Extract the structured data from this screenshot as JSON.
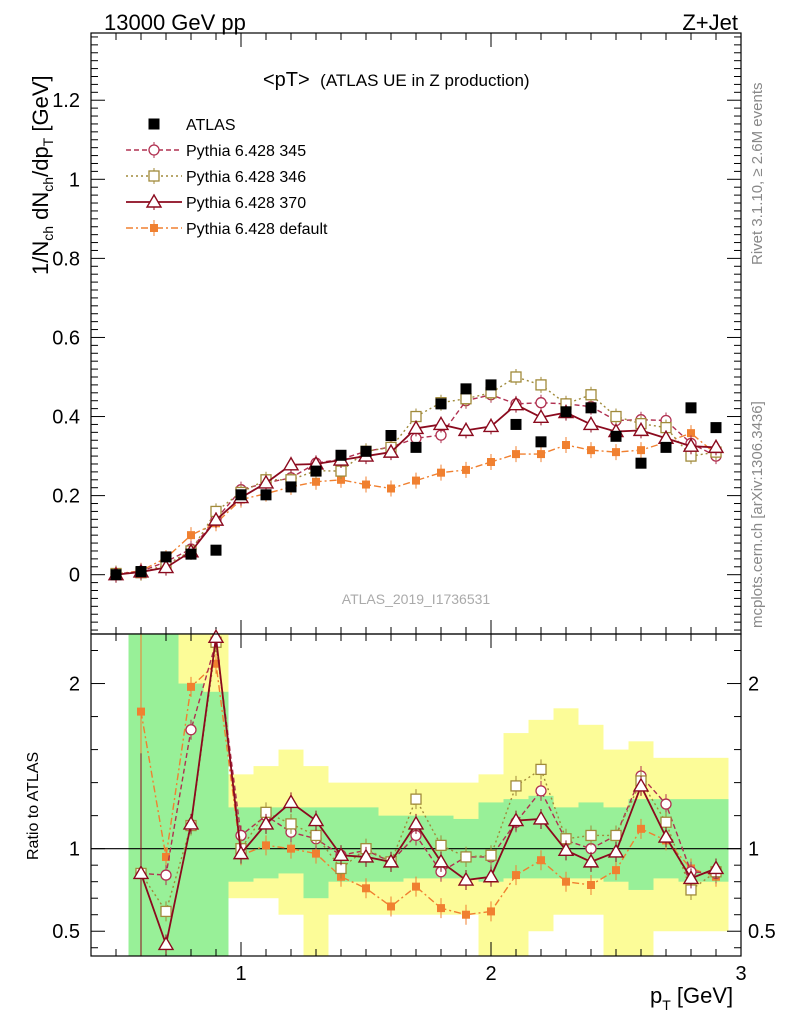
{
  "header": {
    "energy": "13000 GeV pp",
    "process": "Z+Jet"
  },
  "plot_title": {
    "main": "<pT>",
    "sub": "(ATLAS UE in Z production)"
  },
  "watermark": "ATLAS_2019_I1736531",
  "side_labels": {
    "rivet": "Rivet 3.1.10, ≥ 2.6M events",
    "source": "mcplots.cern.ch [arXiv:1306.3436]"
  },
  "axes": {
    "ylabel_main": "1/N_ch dN_ch/dp_T [GeV]",
    "ylabel_ratio": "Ratio to ATLAS",
    "xlabel": "p_T [GeV]"
  },
  "chart_data": [
    {
      "type": "scatter",
      "panel": "main",
      "xlim": [
        0.4,
        3.0
      ],
      "ylim": [
        -0.15,
        1.37
      ],
      "x_ticks": [
        1,
        2,
        3
      ],
      "y_ticks": [
        0,
        0.2,
        0.4,
        0.6,
        0.8,
        1,
        1.2
      ],
      "legend": "top-left",
      "x": [
        0.5,
        0.6,
        0.7,
        0.8,
        0.9,
        1.0,
        1.1,
        1.2,
        1.3,
        1.4,
        1.5,
        1.6,
        1.7,
        1.8,
        1.9,
        2.0,
        2.1,
        2.2,
        2.3,
        2.4,
        2.5,
        2.6,
        2.7,
        2.8,
        2.9
      ],
      "series": [
        {
          "name": "ATLAS",
          "style": "data",
          "color": "#000000",
          "values": [
            0.0,
            0.008,
            0.045,
            0.052,
            0.062,
            0.202,
            0.202,
            0.222,
            0.262,
            0.302,
            0.312,
            0.352,
            0.322,
            0.432,
            0.47,
            0.48,
            0.38,
            0.336,
            0.412,
            0.422,
            0.35,
            0.282,
            0.322,
            0.422,
            0.372
          ]
        },
        {
          "name": "Pythia 6.428 345",
          "style": "circle",
          "color": "#b03050",
          "values": [
            0.002,
            0.008,
            0.033,
            0.065,
            0.14,
            0.215,
            0.232,
            0.245,
            0.282,
            0.292,
            0.312,
            0.323,
            0.345,
            0.353,
            0.44,
            0.455,
            0.432,
            0.435,
            0.432,
            0.425,
            0.39,
            0.392,
            0.39,
            0.332,
            0.3
          ]
        },
        {
          "name": "Pythia 6.428 346",
          "style": "square",
          "color": "#a08a3a",
          "values": [
            0.003,
            0.005,
            0.025,
            0.06,
            0.16,
            0.208,
            0.24,
            0.24,
            0.263,
            0.262,
            0.312,
            0.322,
            0.4,
            0.435,
            0.445,
            0.46,
            0.5,
            0.48,
            0.432,
            0.455,
            0.4,
            0.382,
            0.372,
            0.3,
            0.31
          ]
        },
        {
          "name": "Pythia 6.428 370",
          "style": "triangle",
          "color": "#8b0a1e",
          "values": [
            0.0,
            0.007,
            0.018,
            0.058,
            0.138,
            0.195,
            0.232,
            0.278,
            0.28,
            0.29,
            0.3,
            0.31,
            0.37,
            0.38,
            0.365,
            0.375,
            0.43,
            0.398,
            0.41,
            0.38,
            0.362,
            0.365,
            0.345,
            0.325,
            0.322
          ]
        },
        {
          "name": "Pythia 6.428 default",
          "style": "filled-square",
          "color": "#f08030",
          "values": [
            0.002,
            0.01,
            0.042,
            0.1,
            0.13,
            0.19,
            0.205,
            0.222,
            0.235,
            0.24,
            0.228,
            0.218,
            0.238,
            0.258,
            0.265,
            0.285,
            0.305,
            0.305,
            0.328,
            0.315,
            0.31,
            0.315,
            0.335,
            0.358,
            0.305
          ]
        }
      ]
    },
    {
      "type": "scatter",
      "panel": "ratio",
      "xlim": [
        0.4,
        3.0
      ],
      "ylim": [
        0.35,
        2.3
      ],
      "y_ticks": [
        0.5,
        1,
        2
      ],
      "reference_line": 1,
      "x": [
        0.6,
        0.7,
        0.8,
        0.9,
        1.0,
        1.1,
        1.2,
        1.3,
        1.4,
        1.5,
        1.6,
        1.7,
        1.8,
        1.9,
        2.0,
        2.1,
        2.2,
        2.3,
        2.4,
        2.5,
        2.6,
        2.7,
        2.8,
        2.9
      ],
      "bands": {
        "bin_edges": [
          0.55,
          0.65,
          0.75,
          0.85,
          0.95,
          1.05,
          1.15,
          1.25,
          1.35,
          1.45,
          1.55,
          1.65,
          1.75,
          1.85,
          1.95,
          2.05,
          2.15,
          2.25,
          2.35,
          2.45,
          2.55,
          2.65,
          2.75,
          2.85,
          2.95
        ],
        "green_lo": [
          0.35,
          0.35,
          0.35,
          0.35,
          0.8,
          0.82,
          0.85,
          0.7,
          0.8,
          0.8,
          0.8,
          0.82,
          0.82,
          0.82,
          0.8,
          0.82,
          0.82,
          0.82,
          0.82,
          0.8,
          0.75,
          0.82,
          0.8,
          0.8
        ],
        "green_hi": [
          2.3,
          2.3,
          2.0,
          1.95,
          1.25,
          1.25,
          1.25,
          1.25,
          1.25,
          1.25,
          1.2,
          1.2,
          1.2,
          1.18,
          1.28,
          1.3,
          1.32,
          1.25,
          1.28,
          1.25,
          1.3,
          1.3,
          1.3,
          1.3
        ],
        "yellow_lo": [
          0.35,
          0.35,
          0.35,
          0.35,
          0.7,
          0.7,
          0.6,
          0.35,
          0.6,
          0.6,
          0.6,
          0.6,
          0.6,
          0.6,
          0.35,
          0.35,
          0.5,
          0.6,
          0.6,
          0.35,
          0.35,
          0.5,
          0.5,
          0.5
        ],
        "yellow_hi": [
          2.3,
          2.3,
          2.3,
          2.3,
          1.45,
          1.5,
          1.6,
          1.5,
          1.4,
          1.4,
          1.4,
          1.4,
          1.4,
          1.4,
          1.45,
          1.7,
          1.78,
          1.85,
          1.75,
          1.6,
          1.65,
          1.55,
          1.55,
          1.55
        ],
        "green": "#98f098",
        "yellow": "#fcfc98"
      },
      "series": [
        {
          "name": "Pythia 6.428 345",
          "values": [
            0.85,
            0.84,
            1.72,
            2.25,
            1.08,
            1.2,
            1.1,
            1.06,
            0.96,
            0.99,
            0.92,
            1.08,
            0.86,
            0.95,
            0.95,
            1.16,
            1.35,
            1.05,
            1.0,
            1.08,
            1.44,
            1.27,
            0.86,
            0.85
          ]
        },
        {
          "name": "Pythia 6.428 346",
          "values": [
            0.85,
            0.62,
            1.14,
            2.25,
            1.0,
            1.22,
            1.15,
            1.08,
            0.88,
            1.0,
            0.92,
            1.3,
            1.02,
            0.95,
            0.96,
            1.38,
            1.48,
            1.06,
            1.08,
            1.08,
            1.41,
            1.16,
            0.75,
            0.86
          ]
        },
        {
          "name": "Pythia 6.428 370",
          "values": [
            0.85,
            0.42,
            1.15,
            2.28,
            0.97,
            1.15,
            1.28,
            1.17,
            0.96,
            0.95,
            0.92,
            1.15,
            0.92,
            0.81,
            0.83,
            1.17,
            1.18,
            0.99,
            0.92,
            0.98,
            1.38,
            1.07,
            0.82,
            0.88
          ]
        },
        {
          "name": "Pythia 6.428 default",
          "values": [
            1.83,
            0.95,
            1.98,
            2.12,
            0.96,
            1.02,
            1.0,
            0.97,
            0.83,
            0.76,
            0.65,
            0.77,
            0.64,
            0.6,
            0.62,
            0.84,
            0.93,
            0.8,
            0.78,
            0.87,
            1.12,
            1.05,
            0.88,
            0.83
          ]
        }
      ]
    }
  ]
}
